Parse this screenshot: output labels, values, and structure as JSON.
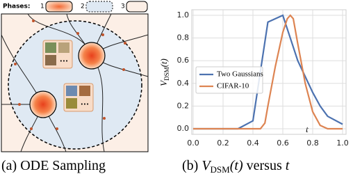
{
  "panel_a": {
    "legend_title": "Phases:",
    "phases": [
      "1",
      "2",
      "3"
    ],
    "thumbnail_text": [
      "•••",
      "•••"
    ],
    "caption": "(a) ODE Sampling"
  },
  "chart_data": {
    "type": "line",
    "y_label": {
      "symbol": "V",
      "subscript": "DSM",
      "arg": "(t)"
    },
    "x_label": "t",
    "caption": {
      "prefix": "(b)",
      "symbol": "V",
      "subscript": "DSM",
      "arg": "(t)",
      "middle": "versus",
      "var": "t"
    },
    "series": [
      {
        "name": "Two Gaussians",
        "color": "#4c72b0",
        "x": [
          0,
          0.3,
          0.4,
          0.5,
          0.6,
          0.7,
          0.8,
          0.85,
          0.9,
          1.0
        ],
        "values": [
          0,
          0,
          0.07,
          0.94,
          1.0,
          0.6,
          0.32,
          0.2,
          0.11,
          0.04
        ]
      },
      {
        "name": "CIFAR-10",
        "color": "#dd8452",
        "x": [
          0,
          0.45,
          0.48,
          0.5,
          0.55,
          0.6,
          0.63,
          0.65,
          0.67,
          0.7,
          0.75,
          0.8,
          0.85,
          0.9,
          1.0
        ],
        "values": [
          0,
          0,
          0.05,
          0.2,
          0.55,
          0.85,
          0.97,
          1.0,
          0.97,
          0.75,
          0.4,
          0.15,
          0.03,
          0,
          0
        ]
      }
    ],
    "xlim": [
      0,
      1.0
    ],
    "ylim": [
      0,
      1.0
    ],
    "xticks": [
      {
        "value": 0,
        "label": "0.0"
      },
      {
        "value": 0.2,
        "label": "0.2"
      },
      {
        "value": 0.4,
        "label": "0.4"
      },
      {
        "value": 0.6,
        "label": "0.6"
      },
      {
        "value": 0.8,
        "label": "0.8"
      },
      {
        "value": 1.0,
        "label": "1.0"
      }
    ],
    "yticks": [
      {
        "value": 0,
        "label": "0.0"
      },
      {
        "value": 0.2,
        "label": "0.2"
      },
      {
        "value": 0.4,
        "label": "0.4"
      },
      {
        "value": 0.6,
        "label": "0.6"
      },
      {
        "value": 0.8,
        "label": "0.8"
      },
      {
        "value": 1.0,
        "label": "1.0"
      }
    ],
    "grid": true,
    "legend_position": "center-left"
  }
}
